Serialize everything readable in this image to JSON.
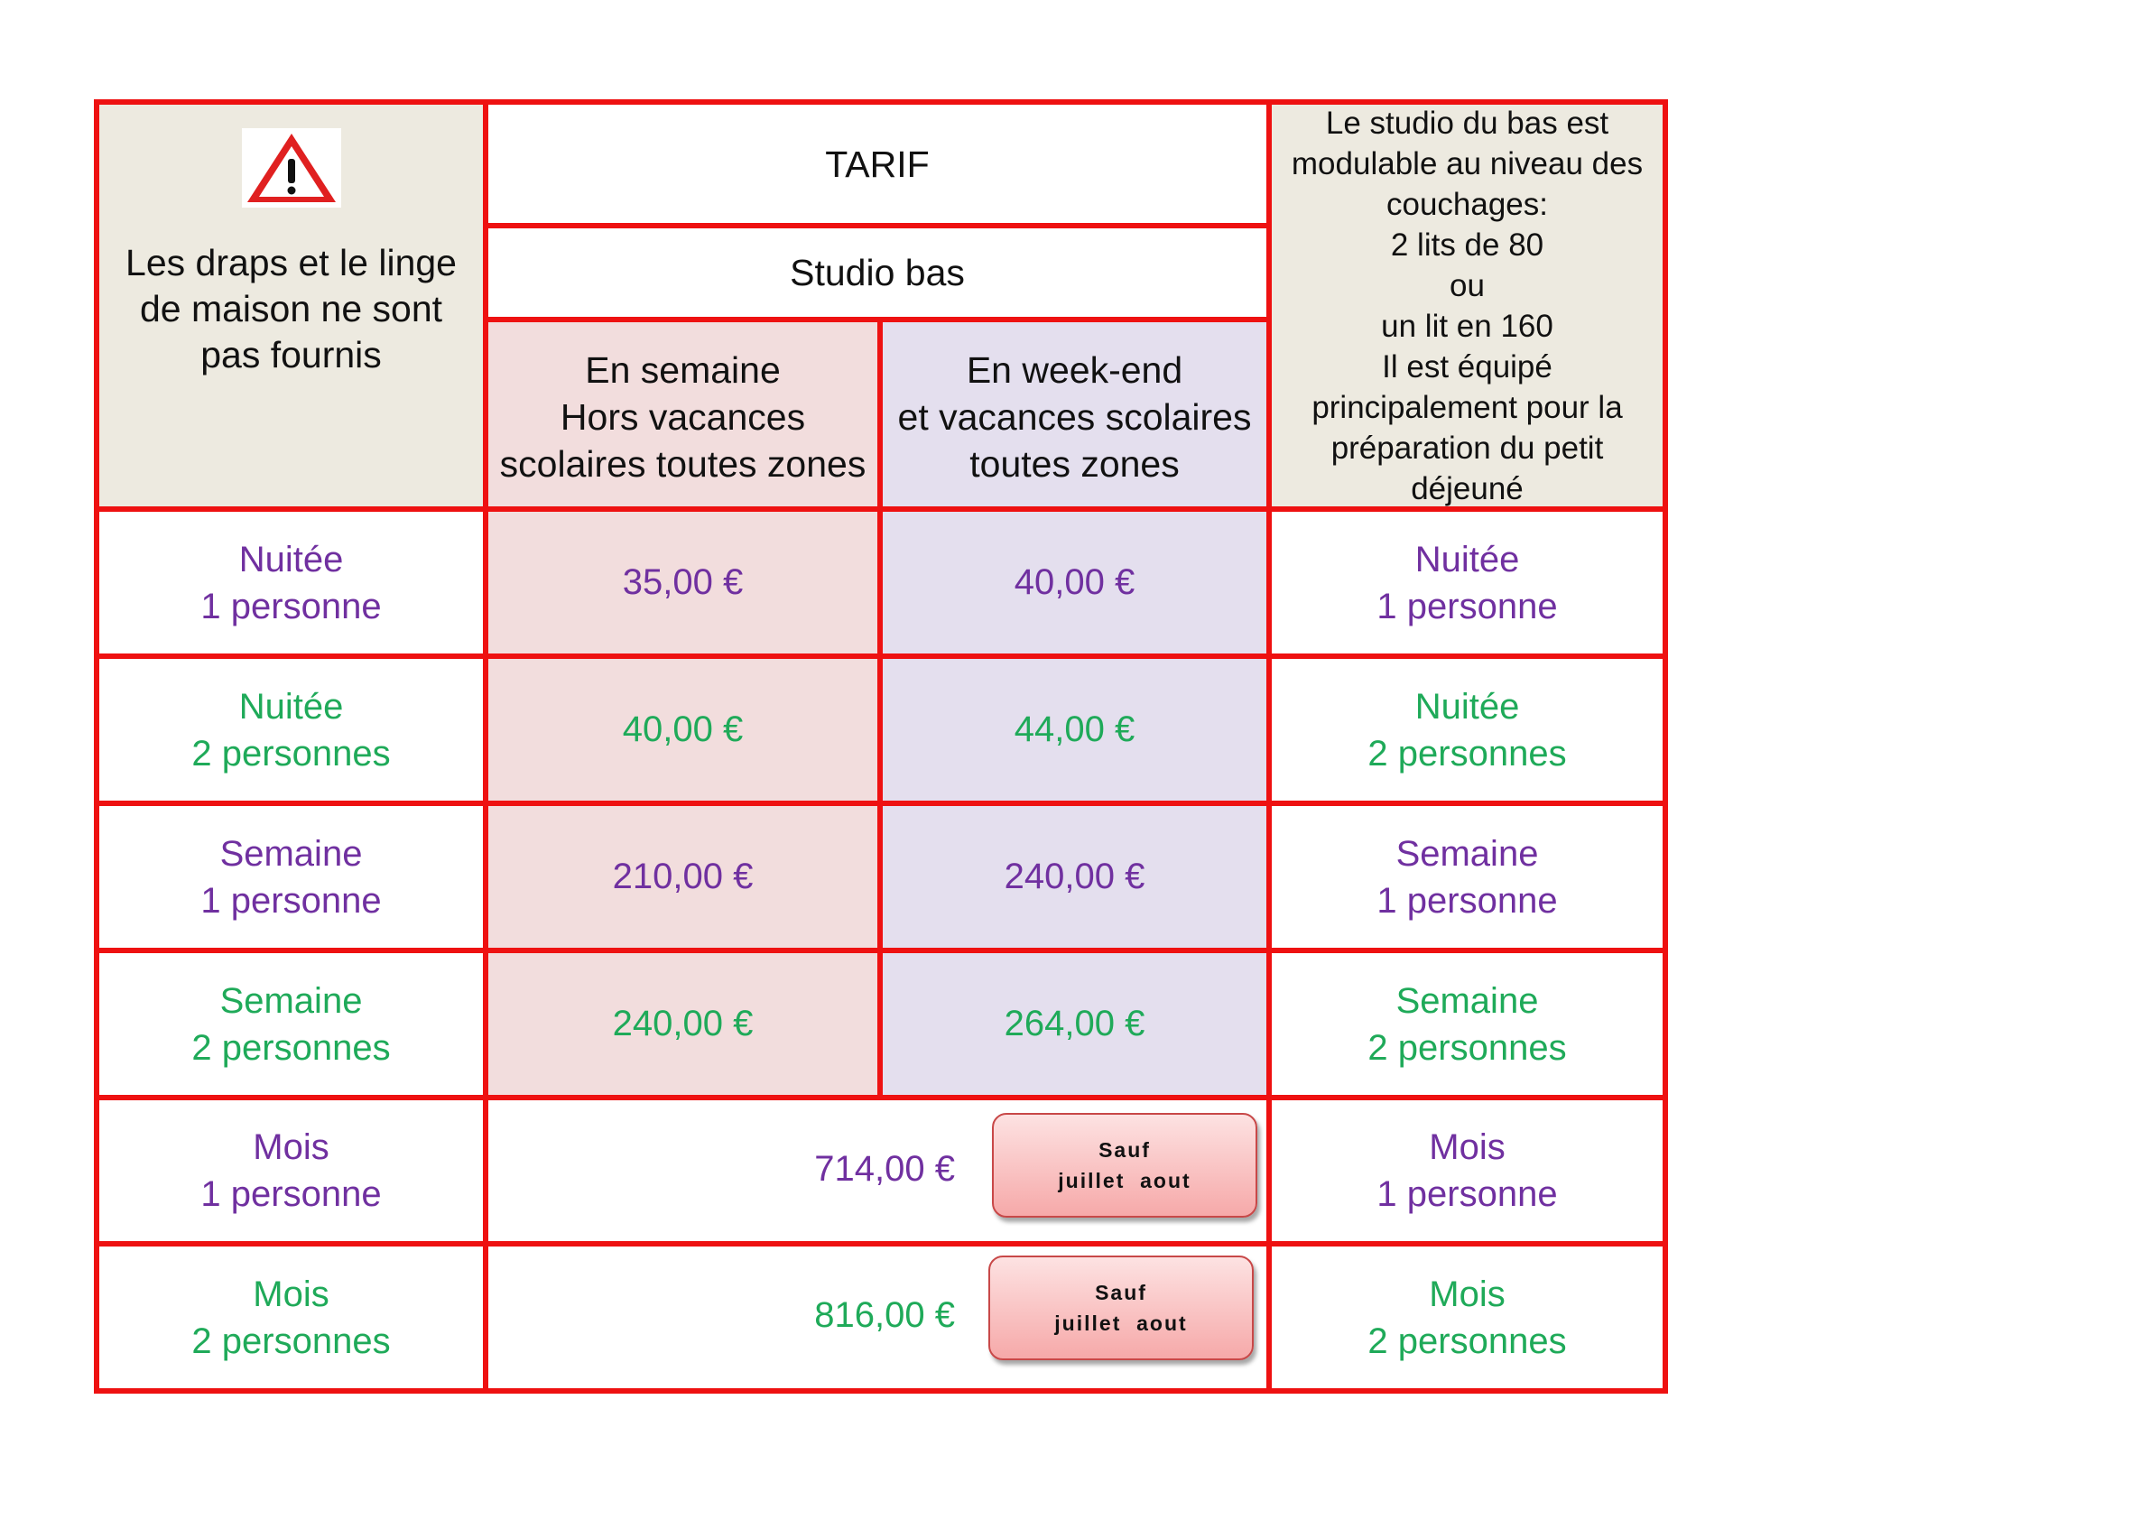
{
  "notice": {
    "icon": "warning-triangle-icon",
    "lines": [
      "Les draps et le linge",
      "de maison ne sont",
      "pas fournis"
    ]
  },
  "header": {
    "title": "TARIF",
    "subtitle": "Studio bas",
    "col_weekday": [
      "En semaine",
      "Hors vacances",
      "scolaires toutes zones"
    ],
    "col_weekend": [
      "En week-end",
      "et vacances scolaires",
      "toutes zones"
    ]
  },
  "side_note": [
    "Le studio du bas est",
    "modulable au niveau des",
    "couchages:",
    "2 lits de 80",
    "ou",
    "un lit en 160",
    "Il est équipé",
    "principalement pour la",
    "préparation du petit",
    "déjeuné"
  ],
  "rows": [
    {
      "label": [
        "Nuitée",
        "1 personne"
      ],
      "weekday": "35,00 €",
      "weekend": "40,00 €"
    },
    {
      "label": [
        "Nuitée",
        "2 personnes"
      ],
      "weekday": "40,00 €",
      "weekend": "44,00 €"
    },
    {
      "label": [
        "Semaine",
        "1 personne"
      ],
      "weekday": "210,00 €",
      "weekend": "240,00 €"
    },
    {
      "label": [
        "Semaine",
        "2 personnes"
      ],
      "weekday": "240,00 €",
      "weekend": "264,00 €"
    },
    {
      "label": [
        "Mois",
        "1 personne"
      ],
      "price": "714,00 €",
      "badge": [
        "Sauf",
        "juillet  aout"
      ]
    },
    {
      "label": [
        "Mois",
        "2 personnes"
      ],
      "price": "816,00 €",
      "badge": [
        "Sauf",
        "juillet  aout"
      ]
    }
  ],
  "colors": {
    "border": "#ee1111",
    "odd_rows_text": "#7030a0",
    "even_rows_text": "#1faa59",
    "beige": "#edeae0",
    "pink": "#f2dddd",
    "lavender": "#e4dfee"
  }
}
